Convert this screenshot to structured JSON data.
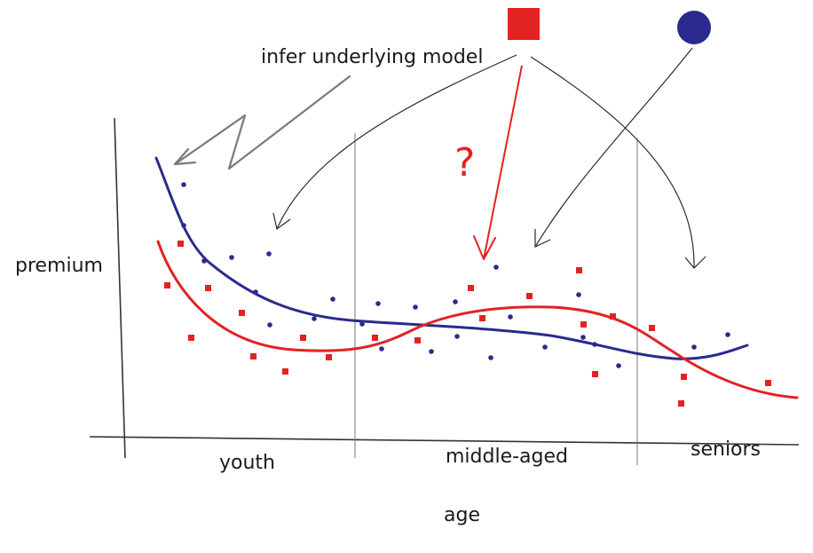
{
  "labels": {
    "annotation": "infer underlying model",
    "y_axis": "premium",
    "x_axis": "age",
    "question_mark": "?",
    "groups": [
      "youth",
      "middle-aged",
      "seniors"
    ]
  },
  "legend": {
    "square_color": "#e32222",
    "circle_color": "#2a2a8f"
  },
  "colors": {
    "red": "#e32222",
    "blue": "#2a2a8f",
    "axis": "#333333",
    "gray_arrow": "#7a7a7a",
    "thin_arrow": "#2a2a2a"
  }
}
